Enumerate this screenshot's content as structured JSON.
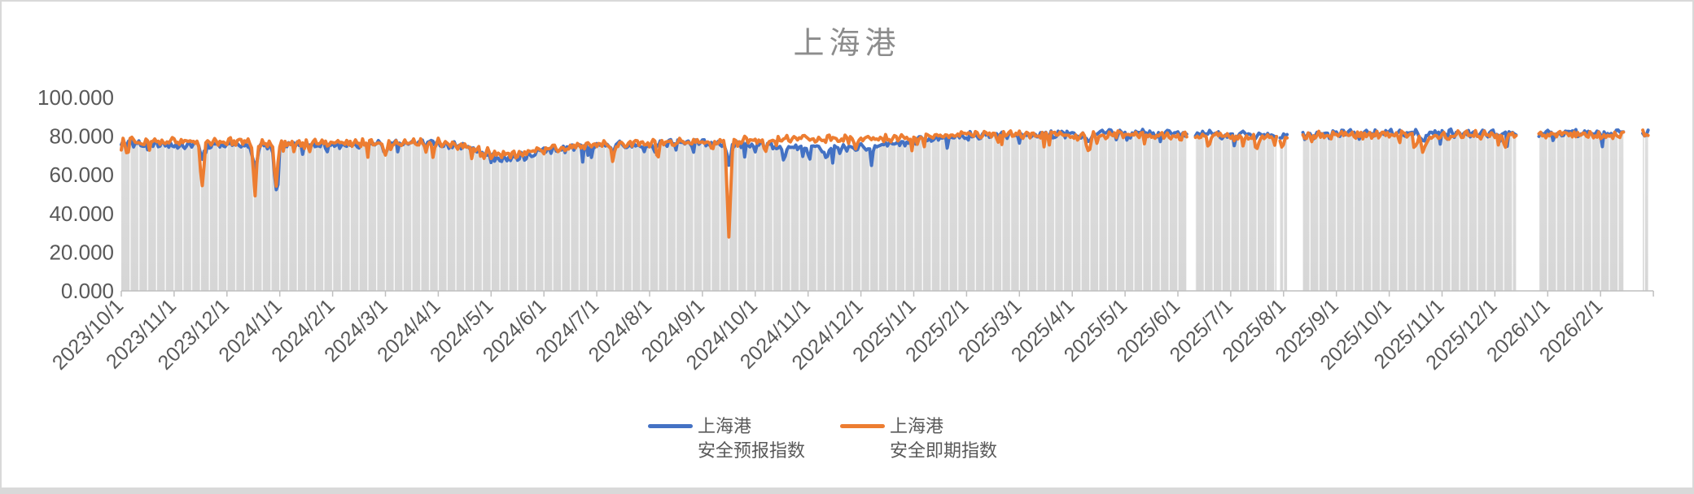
{
  "frame": {
    "border_color": "#d9d9d9",
    "bottom_strip_color": "#d9d9d9"
  },
  "chart_data": {
    "type": "line",
    "title": "上海港",
    "title_color": "#8c8c8c",
    "ylim": [
      0,
      100
    ],
    "y_ticks": [
      {
        "v": 0,
        "label": "0.000"
      },
      {
        "v": 20,
        "label": "20.000"
      },
      {
        "v": 40,
        "label": "40.000"
      },
      {
        "v": 60,
        "label": "60.000"
      },
      {
        "v": 80,
        "label": "80.000"
      },
      {
        "v": 100,
        "label": "100.000"
      }
    ],
    "x_ticks": [
      "2023/10/1",
      "2023/11/1",
      "2023/12/1",
      "2024/1/1",
      "2024/2/1",
      "2024/3/1",
      "2024/4/1",
      "2024/5/1",
      "2024/6/1",
      "2024/7/1",
      "2024/8/1",
      "2024/9/1",
      "2024/10/1",
      "2024/11/1",
      "2024/12/1",
      "2025/1/1",
      "2025/2/1",
      "2025/3/1",
      "2025/4/1",
      "2025/5/1",
      "2025/6/1",
      "2025/7/1",
      "2025/8/1",
      "2025/9/1",
      "2025/10/1",
      "2025/11/1",
      "2025/12/1",
      "2026/1/1",
      "2026/2/1"
    ],
    "axis_color": "#bfbfbf",
    "label_color": "#595959",
    "fill_color_top": "#dedede",
    "fill_color_bottom": "#d6d6d6",
    "grid_stripe_color": "#ffffff",
    "legend_position": "bottom",
    "grid": "vertical-stripes-only",
    "segments": [
      [
        0,
        20.18
      ],
      [
        20.32,
        21.89
      ],
      [
        21.93,
        22.08
      ],
      [
        22.34,
        26.43
      ],
      [
        26.81,
        28.45
      ],
      [
        28.79,
        28.91
      ]
    ],
    "noise_amp": 3.2,
    "series": [
      {
        "name_lines": [
          "上海港",
          "安全预报指数"
        ],
        "color": "#4472C4",
        "seed": 7,
        "anchors": [
          [
            0,
            76
          ],
          [
            1,
            75.5
          ],
          [
            2,
            75.5
          ],
          [
            3,
            75.5
          ],
          [
            4,
            75.5
          ],
          [
            5,
            76
          ],
          [
            6,
            76.5
          ],
          [
            6.6,
            73.5
          ],
          [
            7.2,
            68.5
          ],
          [
            7.6,
            69.5
          ],
          [
            8,
            72.5
          ],
          [
            9,
            75
          ],
          [
            10,
            76
          ],
          [
            11,
            76.5
          ],
          [
            12,
            75.5
          ],
          [
            12.5,
            74.5
          ],
          [
            13,
            74
          ],
          [
            13.5,
            73.5
          ],
          [
            14,
            74.5
          ],
          [
            14.7,
            76.5
          ],
          [
            15,
            78
          ],
          [
            16,
            80.5
          ],
          [
            17,
            81
          ],
          [
            18,
            81
          ],
          [
            19,
            81.5
          ],
          [
            20,
            81
          ],
          [
            21,
            80.5
          ],
          [
            22,
            80
          ],
          [
            22.5,
            80.5
          ],
          [
            23,
            81
          ],
          [
            24,
            81.5
          ],
          [
            25,
            81.5
          ],
          [
            26,
            81.5
          ],
          [
            27,
            81.5
          ],
          [
            28,
            81.5
          ],
          [
            29,
            82
          ]
        ],
        "dips": [
          {
            "m": 1.53,
            "d": 6,
            "w": 0.05
          },
          {
            "m": 2.53,
            "d": 14,
            "w": 0.05
          },
          {
            "m": 2.93,
            "d": 24,
            "w": 0.05
          },
          {
            "m": 5.0,
            "d": 5,
            "w": 0.04
          },
          {
            "m": 9.3,
            "d": 5,
            "w": 0.04
          },
          {
            "m": 10.1,
            "d": 4,
            "w": 0.035
          },
          {
            "m": 11.5,
            "d": 11,
            "w": 0.04
          },
          {
            "m": 12.55,
            "d": 6,
            "w": 0.05
          },
          {
            "m": 13.35,
            "d": 6,
            "w": 0.05
          },
          {
            "m": 14.2,
            "d": 5,
            "w": 0.04
          },
          {
            "m": 18.3,
            "d": 5,
            "w": 0.06
          },
          {
            "m": 24.65,
            "d": 4,
            "w": 0.06
          }
        ]
      },
      {
        "name_lines": [
          "上海港",
          "安全即期指数"
        ],
        "color": "#ED7D31",
        "seed": 13,
        "anchors": [
          [
            0,
            77.5
          ],
          [
            1,
            77
          ],
          [
            2,
            77
          ],
          [
            3,
            76.5
          ],
          [
            4,
            76.5
          ],
          [
            5,
            76.5
          ],
          [
            6,
            77
          ],
          [
            6.6,
            74
          ],
          [
            7.2,
            70
          ],
          [
            7.6,
            71
          ],
          [
            8,
            73.5
          ],
          [
            9,
            75.5
          ],
          [
            10,
            76.5
          ],
          [
            11,
            77
          ],
          [
            12,
            78
          ],
          [
            13,
            78.5
          ],
          [
            14,
            78.5
          ],
          [
            15,
            79
          ],
          [
            16,
            81
          ],
          [
            17,
            81
          ],
          [
            18,
            80.5
          ],
          [
            19,
            81
          ],
          [
            20,
            80
          ],
          [
            21,
            80
          ],
          [
            22,
            79.5
          ],
          [
            22.5,
            80.5
          ],
          [
            23,
            80.5
          ],
          [
            24,
            81
          ],
          [
            25,
            80.5
          ],
          [
            26,
            81
          ],
          [
            27,
            81
          ],
          [
            28,
            80.5
          ],
          [
            29,
            81.5
          ]
        ],
        "dips": [
          {
            "m": 0.12,
            "d": 6,
            "w": 0.03
          },
          {
            "m": 1.53,
            "d": 23,
            "w": 0.045
          },
          {
            "m": 2.53,
            "d": 29,
            "w": 0.04
          },
          {
            "m": 2.93,
            "d": 23,
            "w": 0.04
          },
          {
            "m": 5.0,
            "d": 7,
            "w": 0.04
          },
          {
            "m": 5.9,
            "d": 8,
            "w": 0.035
          },
          {
            "m": 9.3,
            "d": 8,
            "w": 0.04
          },
          {
            "m": 10.15,
            "d": 8,
            "w": 0.035
          },
          {
            "m": 11.5,
            "d": 49,
            "w": 0.045
          },
          {
            "m": 12.2,
            "d": 6,
            "w": 0.04
          },
          {
            "m": 13.9,
            "d": 6,
            "w": 0.04
          },
          {
            "m": 16.6,
            "d": 4,
            "w": 0.04
          },
          {
            "m": 18.3,
            "d": 9,
            "w": 0.05
          },
          {
            "m": 20.6,
            "d": 5,
            "w": 0.035
          },
          {
            "m": 21.5,
            "d": 6,
            "w": 0.04
          },
          {
            "m": 24.65,
            "d": 9,
            "w": 0.06
          },
          {
            "m": 26.2,
            "d": 6,
            "w": 0.05
          }
        ]
      }
    ]
  }
}
